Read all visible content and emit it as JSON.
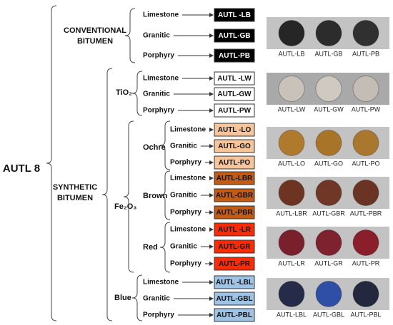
{
  "root": "AUTL 8",
  "branches": [
    {
      "label": "CONVENTIONAL BITUMEN",
      "rows": [
        {
          "aggregate": "Limestone",
          "code": "AUTL -LB"
        },
        {
          "aggregate": "Granitic",
          "code": "AUTL-GB"
        },
        {
          "aggregate": "Porphyry",
          "code": "AUTL-PB"
        }
      ]
    },
    {
      "label": "SYNTHETIC BITUMEN",
      "pigments": [
        {
          "label": "TiO₂",
          "rows": [
            {
              "aggregate": "Limestone",
              "code": "AUTL -LW"
            },
            {
              "aggregate": "Granitic",
              "code": "AUTL-GW"
            },
            {
              "aggregate": "Porphyry",
              "code": "AUTL-PW"
            }
          ]
        },
        {
          "label": "Fe₂O₃",
          "shades": [
            {
              "label": "Ochre",
              "rows": [
                {
                  "aggregate": "Limestone",
                  "code": "AUTL -LO"
                },
                {
                  "aggregate": "Granitic",
                  "code": "AUTL-GO"
                },
                {
                  "aggregate": "Porphyry",
                  "code": "AUTL-PO"
                }
              ]
            },
            {
              "label": "Brown",
              "rows": [
                {
                  "aggregate": "Limestone",
                  "code": "AUTL-LBR"
                },
                {
                  "aggregate": "Granitic",
                  "code": "AUTL-GBR"
                },
                {
                  "aggregate": "Porphyry",
                  "code": "AUTL-PBR"
                }
              ]
            },
            {
              "label": "Red",
              "rows": [
                {
                  "aggregate": "Limestone",
                  "code": "AUTL -LR"
                },
                {
                  "aggregate": "Granitic",
                  "code": "AUTL-GR"
                },
                {
                  "aggregate": "Porphyry",
                  "code": "AUTL-PR"
                }
              ]
            }
          ]
        },
        {
          "label": "Blue",
          "rows": [
            {
              "aggregate": "Limestone",
              "code": "AUTL -LBL"
            },
            {
              "aggregate": "Granitic",
              "code": "AUTL-GBL"
            },
            {
              "aggregate": "Porphyry",
              "code": "AUTL-PBL"
            }
          ]
        }
      ]
    }
  ],
  "photos": [
    [
      "AUTL-LB",
      "AUTL-GB",
      "AUTL-PB"
    ],
    [
      "AUTL-LW",
      "AUTL-GW",
      "AUTL-PW"
    ],
    [
      "AUTL-LO",
      "AUTL-GO",
      "AUTL-PO"
    ],
    [
      "AUTL-LBR",
      "AUTL-GBR",
      "AUTL-PBR"
    ],
    [
      "AUTL-LR",
      "AUTL-GR",
      "AUTL-PR"
    ],
    [
      "AUTL-LBL",
      "AUTL-GBL",
      "AUTL-PBL"
    ]
  ]
}
